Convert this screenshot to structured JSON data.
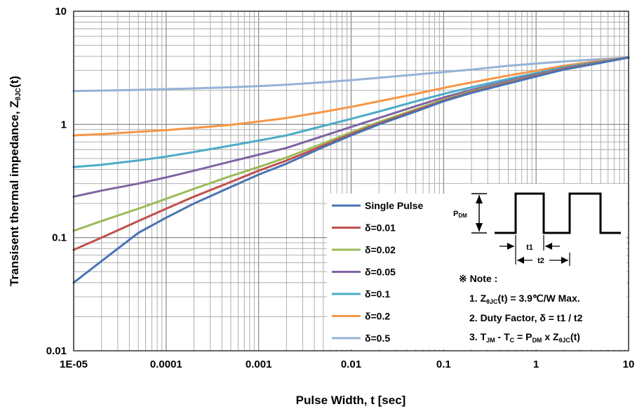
{
  "chart_data": {
    "type": "line",
    "xscale": "log",
    "yscale": "log",
    "xlim": [
      1e-05,
      10
    ],
    "ylim": [
      0.01,
      10
    ],
    "grid": true,
    "xlabel": "Pulse Width, t [sec]",
    "ylabel": "Transisent thermal impedance, Z",
    "ylabel_sub": "θJC",
    "ylabel_tail": "(t)",
    "x_tick_labels": [
      "1E-05",
      "0.0001",
      "0.001",
      "0.01",
      "0.1",
      "1",
      "10"
    ],
    "y_tick_labels": [
      "0.01",
      "0.1",
      "1",
      "10"
    ],
    "legend_position": "lower-center",
    "series": [
      {
        "name": "Single Pulse",
        "color": "#4a74b4",
        "points": [
          [
            1e-05,
            0.04
          ],
          [
            2e-05,
            0.062
          ],
          [
            5e-05,
            0.11
          ],
          [
            0.0001,
            0.15
          ],
          [
            0.0002,
            0.2
          ],
          [
            0.0005,
            0.28
          ],
          [
            0.001,
            0.36
          ],
          [
            0.002,
            0.45
          ],
          [
            0.005,
            0.63
          ],
          [
            0.01,
            0.8
          ],
          [
            0.02,
            1.0
          ],
          [
            0.05,
            1.3
          ],
          [
            0.1,
            1.6
          ],
          [
            0.2,
            1.9
          ],
          [
            0.5,
            2.3
          ],
          [
            1,
            2.65
          ],
          [
            2,
            3.05
          ],
          [
            5,
            3.5
          ],
          [
            10,
            3.9
          ]
        ]
      },
      {
        "name": "δ=0.01",
        "color": "#c0504d",
        "points": [
          [
            1e-05,
            0.078
          ],
          [
            2e-05,
            0.1
          ],
          [
            5e-05,
            0.14
          ],
          [
            0.0001,
            0.18
          ],
          [
            0.0002,
            0.23
          ],
          [
            0.0005,
            0.31
          ],
          [
            0.001,
            0.39
          ],
          [
            0.002,
            0.48
          ],
          [
            0.005,
            0.65
          ],
          [
            0.01,
            0.82
          ],
          [
            0.02,
            1.02
          ],
          [
            0.05,
            1.33
          ],
          [
            0.1,
            1.62
          ],
          [
            0.2,
            1.92
          ],
          [
            0.5,
            2.33
          ],
          [
            1,
            2.68
          ],
          [
            2,
            3.08
          ],
          [
            5,
            3.52
          ],
          [
            10,
            3.9
          ]
        ]
      },
      {
        "name": "δ=0.02",
        "color": "#9bbb59",
        "points": [
          [
            1e-05,
            0.115
          ],
          [
            2e-05,
            0.14
          ],
          [
            5e-05,
            0.18
          ],
          [
            0.0001,
            0.22
          ],
          [
            0.0002,
            0.27
          ],
          [
            0.0005,
            0.35
          ],
          [
            0.001,
            0.42
          ],
          [
            0.002,
            0.51
          ],
          [
            0.005,
            0.68
          ],
          [
            0.01,
            0.85
          ],
          [
            0.02,
            1.05
          ],
          [
            0.05,
            1.36
          ],
          [
            0.1,
            1.65
          ],
          [
            0.2,
            1.95
          ],
          [
            0.5,
            2.36
          ],
          [
            1,
            2.7
          ],
          [
            2,
            3.1
          ],
          [
            5,
            3.54
          ],
          [
            10,
            3.9
          ]
        ]
      },
      {
        "name": "δ=0.05",
        "color": "#8064a2",
        "points": [
          [
            1e-05,
            0.23
          ],
          [
            2e-05,
            0.26
          ],
          [
            5e-05,
            0.3
          ],
          [
            0.0001,
            0.34
          ],
          [
            0.0002,
            0.39
          ],
          [
            0.0005,
            0.47
          ],
          [
            0.001,
            0.54
          ],
          [
            0.002,
            0.62
          ],
          [
            0.005,
            0.79
          ],
          [
            0.01,
            0.95
          ],
          [
            0.02,
            1.14
          ],
          [
            0.05,
            1.45
          ],
          [
            0.1,
            1.73
          ],
          [
            0.2,
            2.02
          ],
          [
            0.5,
            2.42
          ],
          [
            1,
            2.76
          ],
          [
            2,
            3.14
          ],
          [
            5,
            3.56
          ],
          [
            10,
            3.9
          ]
        ]
      },
      {
        "name": "δ=0.1",
        "color": "#4bacc6",
        "points": [
          [
            1e-05,
            0.42
          ],
          [
            2e-05,
            0.44
          ],
          [
            5e-05,
            0.48
          ],
          [
            0.0001,
            0.52
          ],
          [
            0.0002,
            0.57
          ],
          [
            0.0005,
            0.65
          ],
          [
            0.001,
            0.72
          ],
          [
            0.002,
            0.8
          ],
          [
            0.005,
            0.97
          ],
          [
            0.01,
            1.12
          ],
          [
            0.02,
            1.3
          ],
          [
            0.05,
            1.6
          ],
          [
            0.1,
            1.86
          ],
          [
            0.2,
            2.13
          ],
          [
            0.5,
            2.52
          ],
          [
            1,
            2.84
          ],
          [
            2,
            3.2
          ],
          [
            5,
            3.6
          ],
          [
            10,
            3.9
          ]
        ]
      },
      {
        "name": "δ=0.2",
        "color": "#f79646",
        "points": [
          [
            1e-05,
            0.8
          ],
          [
            2e-05,
            0.82
          ],
          [
            5e-05,
            0.86
          ],
          [
            0.0001,
            0.89
          ],
          [
            0.0002,
            0.93
          ],
          [
            0.0005,
            0.99
          ],
          [
            0.001,
            1.06
          ],
          [
            0.002,
            1.14
          ],
          [
            0.005,
            1.29
          ],
          [
            0.01,
            1.43
          ],
          [
            0.02,
            1.6
          ],
          [
            0.05,
            1.86
          ],
          [
            0.1,
            2.1
          ],
          [
            0.2,
            2.35
          ],
          [
            0.5,
            2.7
          ],
          [
            1,
            2.98
          ],
          [
            2,
            3.3
          ],
          [
            5,
            3.66
          ],
          [
            10,
            3.9
          ]
        ]
      },
      {
        "name": "δ=0.5",
        "color": "#95b3d7",
        "points": [
          [
            1e-05,
            1.97
          ],
          [
            2e-05,
            1.99
          ],
          [
            5e-05,
            2.02
          ],
          [
            0.0001,
            2.05
          ],
          [
            0.0002,
            2.08
          ],
          [
            0.0005,
            2.13
          ],
          [
            0.001,
            2.18
          ],
          [
            0.002,
            2.24
          ],
          [
            0.005,
            2.36
          ],
          [
            0.01,
            2.46
          ],
          [
            0.02,
            2.58
          ],
          [
            0.05,
            2.76
          ],
          [
            0.1,
            2.9
          ],
          [
            0.2,
            3.05
          ],
          [
            0.5,
            3.3
          ],
          [
            1,
            3.45
          ],
          [
            2,
            3.6
          ],
          [
            5,
            3.78
          ],
          [
            10,
            3.9
          ]
        ]
      }
    ],
    "inset": {
      "pdm_label": "P",
      "pdm_sub": "DM",
      "t1_label": "t1",
      "t2_label": "t2",
      "note_title": "※ Note :",
      "note1": {
        "pre": "1. Z",
        "sub": "θJC",
        "post": "(t) = 3.9℃/W Max."
      },
      "note2": {
        "text": "2. Duty Factor, δ = t1 / t2"
      },
      "note3": {
        "pre": "3. T",
        "sub1": "JM",
        "mid1": " - T",
        "sub2": "C",
        "mid2": " = P",
        "sub3": "DM",
        "mid3": " x Z",
        "sub4": "θJC",
        "post": "(t)"
      }
    }
  }
}
